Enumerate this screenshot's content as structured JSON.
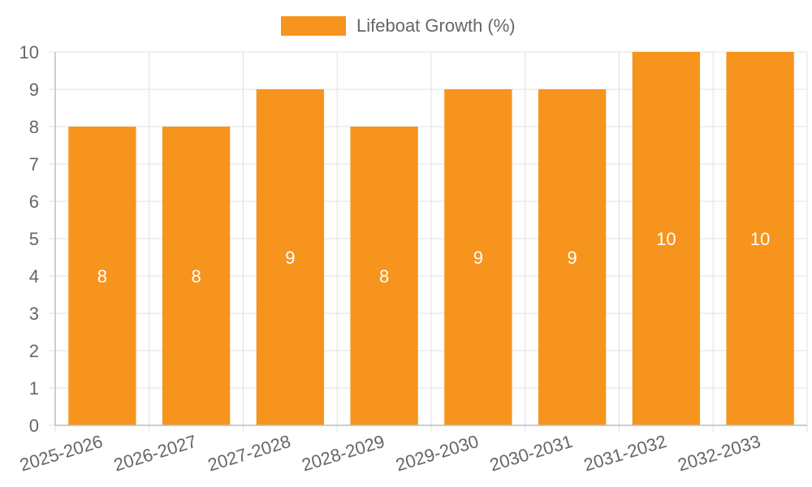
{
  "chart_data": {
    "type": "bar",
    "categories": [
      "2025-2026",
      "2026-2027",
      "2027-2028",
      "2028-2029",
      "2029-2030",
      "2030-2031",
      "2031-2032",
      "2032-2033"
    ],
    "series": [
      {
        "name": "Lifeboat Growth (%)",
        "values": [
          8,
          8,
          9,
          8,
          9,
          9,
          10,
          10
        ],
        "color": "#f7941d"
      }
    ],
    "data_labels": [
      "8",
      "8",
      "9",
      "8",
      "9",
      "9",
      "10",
      "10"
    ],
    "ylim": [
      0,
      10
    ],
    "y_ticks": [
      "0",
      "1",
      "2",
      "3",
      "4",
      "5",
      "6",
      "7",
      "8",
      "9",
      "10"
    ],
    "grid": true,
    "legend_position": "top-center",
    "colors": {
      "bar": "#f7941d",
      "grid": "#e0e0e0",
      "axis": "#bdbdbd",
      "text": "#666666",
      "data_label": "#ffffff"
    }
  }
}
